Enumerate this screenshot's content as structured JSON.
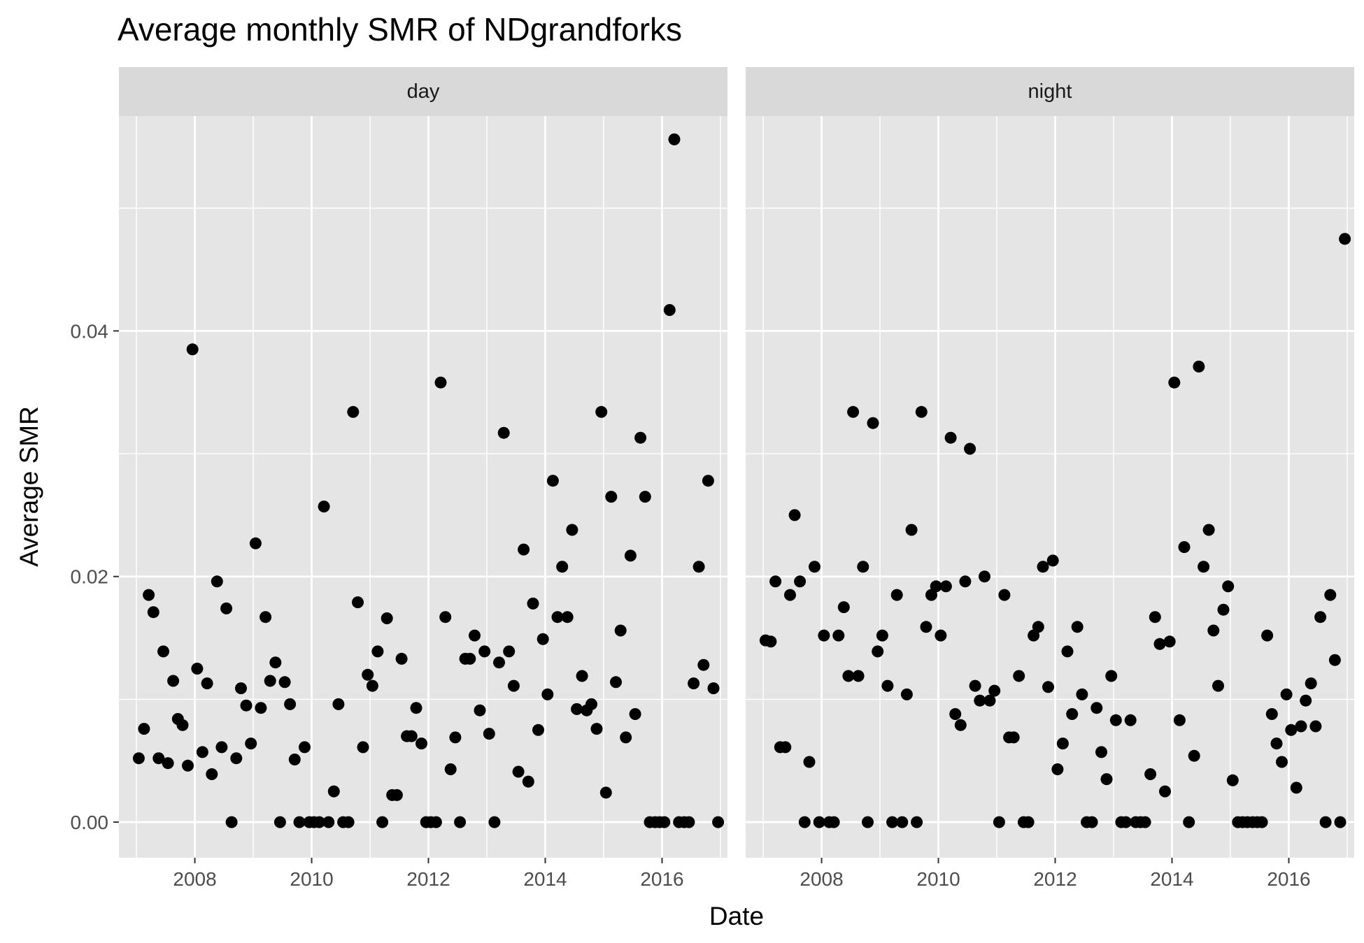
{
  "chart_data": {
    "type": "scatter",
    "title": "Average monthly SMR of NDgrandforks",
    "xlabel": "Date",
    "ylabel": "Average SMR",
    "xlim": [
      2006.7,
      2017.12
    ],
    "ylim": [
      -0.0029,
      0.0575
    ],
    "x_ticks": [
      2008,
      2010,
      2012,
      2014,
      2016
    ],
    "x_tick_labels": [
      "2008",
      "2010",
      "2012",
      "2014",
      "2016"
    ],
    "y_ticks": [
      0,
      0.02,
      0.04
    ],
    "y_tick_labels": [
      "0.00",
      "0.02",
      "0.04"
    ],
    "grid": true,
    "colors": {
      "panel": "#e5e5e5",
      "strip": "#d9d9d9",
      "grid": "#ffffff",
      "point": "#000000"
    },
    "facets": [
      {
        "label": "day",
        "points": [
          [
            2007.04,
            0.0052
          ],
          [
            2007.13,
            0.0076
          ],
          [
            2007.21,
            0.0185
          ],
          [
            2007.29,
            0.0171
          ],
          [
            2007.38,
            0.0052
          ],
          [
            2007.46,
            0.0139
          ],
          [
            2007.54,
            0.0048
          ],
          [
            2007.63,
            0.0115
          ],
          [
            2007.71,
            0.0084
          ],
          [
            2007.79,
            0.0079
          ],
          [
            2007.88,
            0.0046
          ],
          [
            2007.96,
            0.0385
          ],
          [
            2008.04,
            0.0125
          ],
          [
            2008.13,
            0.0057
          ],
          [
            2008.21,
            0.0113
          ],
          [
            2008.29,
            0.0039
          ],
          [
            2008.38,
            0.0196
          ],
          [
            2008.46,
            0.0061
          ],
          [
            2008.54,
            0.0174
          ],
          [
            2008.63,
            0.0
          ],
          [
            2008.71,
            0.0052
          ],
          [
            2008.79,
            0.0109
          ],
          [
            2008.88,
            0.0095
          ],
          [
            2008.96,
            0.0064
          ],
          [
            2009.04,
            0.0227
          ],
          [
            2009.13,
            0.0093
          ],
          [
            2009.21,
            0.0167
          ],
          [
            2009.29,
            0.0115
          ],
          [
            2009.38,
            0.013
          ],
          [
            2009.46,
            0.0
          ],
          [
            2009.54,
            0.0114
          ],
          [
            2009.63,
            0.0096
          ],
          [
            2009.71,
            0.0051
          ],
          [
            2009.79,
            0.0
          ],
          [
            2009.88,
            0.0061
          ],
          [
            2009.96,
            0.0
          ],
          [
            2010.04,
            0.0
          ],
          [
            2010.13,
            0.0
          ],
          [
            2010.21,
            0.0257
          ],
          [
            2010.29,
            0.0
          ],
          [
            2010.38,
            0.0025
          ],
          [
            2010.46,
            0.0096
          ],
          [
            2010.54,
            0.0
          ],
          [
            2010.63,
            0.0
          ],
          [
            2010.71,
            0.0334
          ],
          [
            2010.79,
            0.0179
          ],
          [
            2010.88,
            0.0061
          ],
          [
            2010.96,
            0.012
          ],
          [
            2011.04,
            0.0111
          ],
          [
            2011.13,
            0.0139
          ],
          [
            2011.21,
            0.0
          ],
          [
            2011.29,
            0.0166
          ],
          [
            2011.38,
            0.0022
          ],
          [
            2011.46,
            0.0022
          ],
          [
            2011.54,
            0.0133
          ],
          [
            2011.63,
            0.007
          ],
          [
            2011.71,
            0.007
          ],
          [
            2011.79,
            0.0093
          ],
          [
            2011.88,
            0.0064
          ],
          [
            2011.96,
            0.0
          ],
          [
            2012.04,
            0.0
          ],
          [
            2012.13,
            0.0
          ],
          [
            2012.21,
            0.0358
          ],
          [
            2012.29,
            0.0167
          ],
          [
            2012.38,
            0.0043
          ],
          [
            2012.46,
            0.0069
          ],
          [
            2012.54,
            0.0
          ],
          [
            2012.63,
            0.0133
          ],
          [
            2012.71,
            0.0133
          ],
          [
            2012.79,
            0.0152
          ],
          [
            2012.88,
            0.0091
          ],
          [
            2012.96,
            0.0139
          ],
          [
            2013.04,
            0.0072
          ],
          [
            2013.13,
            0.0
          ],
          [
            2013.21,
            0.013
          ],
          [
            2013.29,
            0.0317
          ],
          [
            2013.38,
            0.0139
          ],
          [
            2013.46,
            0.0111
          ],
          [
            2013.54,
            0.0041
          ],
          [
            2013.63,
            0.0222
          ],
          [
            2013.71,
            0.0033
          ],
          [
            2013.79,
            0.0178
          ],
          [
            2013.88,
            0.0075
          ],
          [
            2013.96,
            0.0149
          ],
          [
            2014.04,
            0.0104
          ],
          [
            2014.13,
            0.0278
          ],
          [
            2014.21,
            0.0167
          ],
          [
            2014.29,
            0.0208
          ],
          [
            2014.38,
            0.0167
          ],
          [
            2014.46,
            0.0238
          ],
          [
            2014.54,
            0.0092
          ],
          [
            2014.63,
            0.0119
          ],
          [
            2014.71,
            0.0091
          ],
          [
            2014.79,
            0.0096
          ],
          [
            2014.88,
            0.0076
          ],
          [
            2014.96,
            0.0334
          ],
          [
            2015.04,
            0.0024
          ],
          [
            2015.13,
            0.0265
          ],
          [
            2015.21,
            0.0114
          ],
          [
            2015.29,
            0.0156
          ],
          [
            2015.38,
            0.0069
          ],
          [
            2015.46,
            0.0217
          ],
          [
            2015.54,
            0.0088
          ],
          [
            2015.63,
            0.0313
          ],
          [
            2015.71,
            0.0265
          ],
          [
            2015.79,
            0.0
          ],
          [
            2015.88,
            0.0
          ],
          [
            2015.96,
            0.0
          ],
          [
            2016.04,
            0.0
          ],
          [
            2016.13,
            0.0417
          ],
          [
            2016.21,
            0.0556
          ],
          [
            2016.29,
            0.0
          ],
          [
            2016.38,
            0.0
          ],
          [
            2016.46,
            0.0
          ],
          [
            2016.54,
            0.0113
          ],
          [
            2016.63,
            0.0208
          ],
          [
            2016.71,
            0.0128
          ],
          [
            2016.79,
            0.0278
          ],
          [
            2016.88,
            0.0109
          ],
          [
            2016.96,
            0.0
          ]
        ]
      },
      {
        "label": "night",
        "points": [
          [
            2007.04,
            0.0148
          ],
          [
            2007.13,
            0.0147
          ],
          [
            2007.21,
            0.0196
          ],
          [
            2007.29,
            0.0061
          ],
          [
            2007.38,
            0.0061
          ],
          [
            2007.46,
            0.0185
          ],
          [
            2007.54,
            0.025
          ],
          [
            2007.63,
            0.0196
          ],
          [
            2007.71,
            0.0
          ],
          [
            2007.79,
            0.0049
          ],
          [
            2007.88,
            0.0208
          ],
          [
            2007.96,
            0.0
          ],
          [
            2008.04,
            0.0152
          ],
          [
            2008.13,
            0.0
          ],
          [
            2008.21,
            0.0
          ],
          [
            2008.29,
            0.0152
          ],
          [
            2008.38,
            0.0175
          ],
          [
            2008.46,
            0.0119
          ],
          [
            2008.54,
            0.0334
          ],
          [
            2008.63,
            0.0119
          ],
          [
            2008.71,
            0.0208
          ],
          [
            2008.79,
            0.0
          ],
          [
            2008.88,
            0.0325
          ],
          [
            2008.96,
            0.0139
          ],
          [
            2009.04,
            0.0152
          ],
          [
            2009.13,
            0.0111
          ],
          [
            2009.21,
            0.0
          ],
          [
            2009.29,
            0.0185
          ],
          [
            2009.38,
            0.0
          ],
          [
            2009.46,
            0.0104
          ],
          [
            2009.54,
            0.0238
          ],
          [
            2009.63,
            0.0
          ],
          [
            2009.71,
            0.0334
          ],
          [
            2009.79,
            0.0159
          ],
          [
            2009.88,
            0.0185
          ],
          [
            2009.96,
            0.0192
          ],
          [
            2010.04,
            0.0152
          ],
          [
            2010.13,
            0.0192
          ],
          [
            2010.21,
            0.0313
          ],
          [
            2010.29,
            0.0088
          ],
          [
            2010.38,
            0.0079
          ],
          [
            2010.46,
            0.0196
          ],
          [
            2010.54,
            0.0304
          ],
          [
            2010.63,
            0.0111
          ],
          [
            2010.71,
            0.0099
          ],
          [
            2010.79,
            0.02
          ],
          [
            2010.88,
            0.0099
          ],
          [
            2010.96,
            0.0107
          ],
          [
            2011.04,
            0.0
          ],
          [
            2011.13,
            0.0185
          ],
          [
            2011.21,
            0.0069
          ],
          [
            2011.29,
            0.0069
          ],
          [
            2011.38,
            0.0119
          ],
          [
            2011.46,
            0.0
          ],
          [
            2011.54,
            0.0
          ],
          [
            2011.63,
            0.0152
          ],
          [
            2011.71,
            0.0159
          ],
          [
            2011.79,
            0.0208
          ],
          [
            2011.88,
            0.011
          ],
          [
            2011.96,
            0.0213
          ],
          [
            2012.04,
            0.0043
          ],
          [
            2012.13,
            0.0064
          ],
          [
            2012.21,
            0.0139
          ],
          [
            2012.29,
            0.0088
          ],
          [
            2012.38,
            0.0159
          ],
          [
            2012.46,
            0.0104
          ],
          [
            2012.54,
            0.0
          ],
          [
            2012.63,
            0.0
          ],
          [
            2012.71,
            0.0093
          ],
          [
            2012.79,
            0.0057
          ],
          [
            2012.88,
            0.0035
          ],
          [
            2012.96,
            0.0119
          ],
          [
            2013.04,
            0.0083
          ],
          [
            2013.13,
            0.0
          ],
          [
            2013.21,
            0.0
          ],
          [
            2013.29,
            0.0083
          ],
          [
            2013.38,
            0.0
          ],
          [
            2013.46,
            0.0
          ],
          [
            2013.54,
            0.0
          ],
          [
            2013.63,
            0.0039
          ],
          [
            2013.71,
            0.0167
          ],
          [
            2013.79,
            0.0145
          ],
          [
            2013.88,
            0.0025
          ],
          [
            2013.96,
            0.0147
          ],
          [
            2014.04,
            0.0358
          ],
          [
            2014.13,
            0.0083
          ],
          [
            2014.21,
            0.0224
          ],
          [
            2014.29,
            0.0
          ],
          [
            2014.38,
            0.0054
          ],
          [
            2014.46,
            0.0371
          ],
          [
            2014.54,
            0.0208
          ],
          [
            2014.63,
            0.0238
          ],
          [
            2014.71,
            0.0156
          ],
          [
            2014.79,
            0.0111
          ],
          [
            2014.88,
            0.0173
          ],
          [
            2014.96,
            0.0192
          ],
          [
            2015.04,
            0.0034
          ],
          [
            2015.13,
            0.0
          ],
          [
            2015.21,
            0.0
          ],
          [
            2015.29,
            0.0
          ],
          [
            2015.38,
            0.0
          ],
          [
            2015.46,
            0.0
          ],
          [
            2015.54,
            0.0
          ],
          [
            2015.63,
            0.0152
          ],
          [
            2015.71,
            0.0088
          ],
          [
            2015.79,
            0.0064
          ],
          [
            2015.88,
            0.0049
          ],
          [
            2015.96,
            0.0104
          ],
          [
            2016.04,
            0.0075
          ],
          [
            2016.13,
            0.0028
          ],
          [
            2016.21,
            0.0078
          ],
          [
            2016.29,
            0.0099
          ],
          [
            2016.38,
            0.0113
          ],
          [
            2016.46,
            0.0078
          ],
          [
            2016.54,
            0.0167
          ],
          [
            2016.63,
            0.0
          ],
          [
            2016.71,
            0.0185
          ],
          [
            2016.79,
            0.0132
          ],
          [
            2016.88,
            0.0
          ],
          [
            2016.96,
            0.0475
          ]
        ]
      }
    ]
  }
}
